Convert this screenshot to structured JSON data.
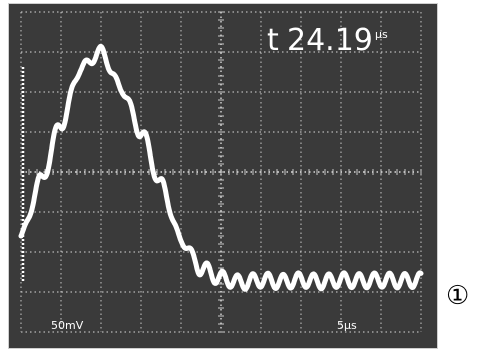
{
  "screen": {
    "cursor_label": "t",
    "readout_value": "24.19",
    "readout_unit": "µs",
    "volts_per_div": "50mV",
    "time_per_div": "5µs"
  },
  "marker": "①",
  "colors": {
    "screen_bg": "#3a3a3a",
    "grid": "#d8d8d8",
    "trace": "#ffffff"
  },
  "chart_data": {
    "type": "line",
    "title": "",
    "xlabel": "",
    "ylabel": "",
    "x_per_div": "5µs",
    "y_per_div": "50mV",
    "grid": true,
    "series": [
      {
        "x": [
          0,
          2.5,
          5,
          7.5,
          10,
          12.5,
          15,
          17.5,
          20,
          22.5,
          25,
          27.5,
          30,
          32.5,
          35,
          37.5,
          40,
          42.5,
          45,
          47.5,
          50
        ],
        "y": [
          -80,
          -10,
          60,
          130,
          150,
          105,
          50,
          -15,
          -85,
          -120,
          -133,
          -138,
          -135,
          -137,
          -135,
          -137,
          -135,
          -136,
          -135,
          -136,
          -135
        ]
      }
    ]
  }
}
